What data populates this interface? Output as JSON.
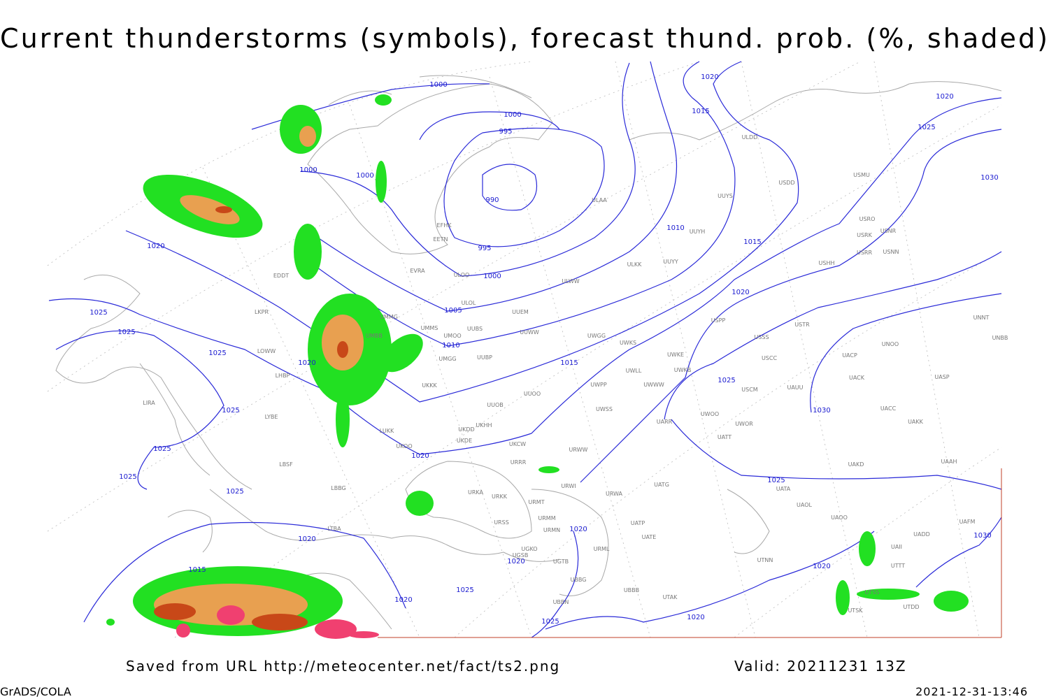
{
  "header": {
    "title": "Current thunderstorms (symbols), forecast thund. prob. (%, shaded)"
  },
  "map": {
    "isobar_labels": [
      1000,
      1000,
      995,
      1000,
      1000,
      990,
      1010,
      995,
      1000,
      1005,
      1010,
      1015,
      1015,
      1020,
      1020,
      1015,
      1020,
      1025,
      1030,
      1020,
      1025,
      1025,
      1025,
      1020,
      1025,
      1025,
      1025,
      1025,
      1020,
      1020,
      1015,
      1020,
      1025,
      1030,
      1025,
      1020,
      1020,
      1020,
      1025,
      1020,
      1025,
      1030
    ],
    "stations": [
      "ULDD",
      "USDD",
      "USMU",
      "ULAA",
      "UUYS",
      "USRO",
      "USRK",
      "USNR",
      "USRR",
      "USNN",
      "UUYH",
      "ULKK",
      "UUYY",
      "USHH",
      "ULWW",
      "EFHK",
      "EETN",
      "EVRA",
      "ULOO",
      "ULOL",
      "UUEM",
      "UMMG",
      "UMMS",
      "UUWW",
      "UMOO",
      "UUBS",
      "UMBB",
      "UMGG",
      "UUBP",
      "UKKK",
      "UUOO",
      "UUOB",
      "UWGG",
      "UWKS",
      "UWKE",
      "UWKB",
      "UWLL",
      "UWWW",
      "UWPP",
      "UWSS",
      "USSS",
      "USTR",
      "USPP",
      "USCC",
      "USCM",
      "UAUU",
      "UACP",
      "UACK",
      "UASP",
      "UNOO",
      "UNNT",
      "UNBB",
      "UAKK",
      "UACC",
      "UAKD",
      "UAAH",
      "UARR",
      "UWOO",
      "UWOR",
      "UATT",
      "UKHH",
      "UKDD",
      "UKDE",
      "LUKK",
      "UKOO",
      "UKCW",
      "URRR",
      "URWW",
      "URWI",
      "EDDT",
      "LKPR",
      "LOWW",
      "LHBP",
      "LIRA",
      "LYBE",
      "LBSF",
      "LBBG",
      "LTBA",
      "URKA",
      "URKK",
      "URMT",
      "URMM",
      "URSS",
      "URMN",
      "UGKO",
      "UGSB",
      "UGTB",
      "UBBG",
      "UBBN",
      "UBBB",
      "URML",
      "URWA",
      "UATG",
      "UATP",
      "UATE",
      "UTAK",
      "UTNN",
      "UATA",
      "UAOL",
      "UAOO",
      "UADD",
      "UAFM",
      "UAII",
      "UTTT",
      "UTDD",
      "UTSS",
      "UTSK"
    ]
  },
  "footer": {
    "source": "Saved from URL http://meteocenter.net/fact/ts2.png",
    "valid": "Valid: 20211231 13Z",
    "software": "GrADS/COLA",
    "timestamp": "2021-12-31-13:46"
  }
}
